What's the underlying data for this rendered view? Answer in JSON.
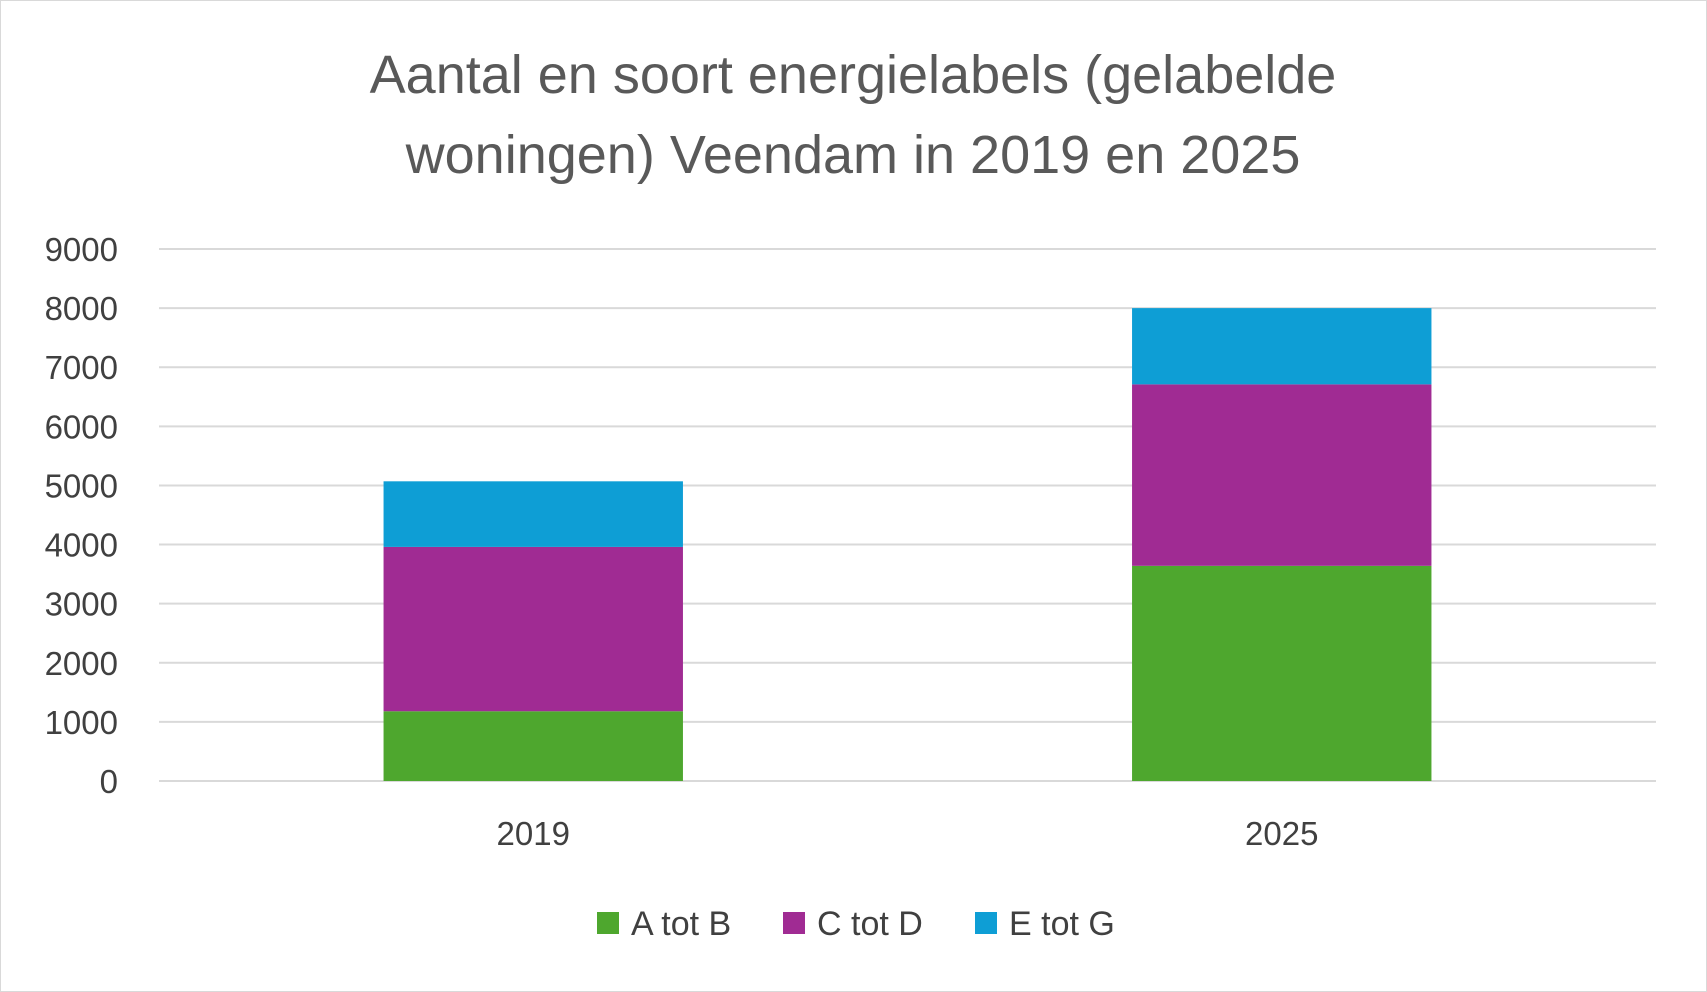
{
  "chart_data": {
    "type": "bar",
    "stacked": true,
    "title_lines": [
      "Aantal en soort energielabels (gelabelde",
      "woningen) Veendam in 2019 en 2025"
    ],
    "categories": [
      "2019",
      "2025"
    ],
    "series": [
      {
        "name": "A tot B",
        "color": "#4ea72e",
        "values": [
          1180,
          3640
        ]
      },
      {
        "name": "C tot D",
        "color": "#a02b93",
        "values": [
          2780,
          3070
        ]
      },
      {
        "name": "E tot G",
        "color": "#0e9ed5",
        "values": [
          1110,
          1290
        ]
      }
    ],
    "yticks": [
      "0",
      "1000",
      "2000",
      "3000",
      "4000",
      "5000",
      "6000",
      "7000",
      "8000",
      "9000"
    ],
    "ylim": [
      0,
      9000
    ],
    "grid": true,
    "legend_position": "bottom",
    "xlabel": "",
    "ylabel": ""
  }
}
